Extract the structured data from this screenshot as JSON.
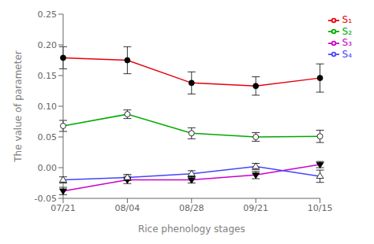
{
  "chart_data": {
    "type": "line",
    "xlabel": "Rice phenology stages",
    "ylabel": "The value of parameter",
    "categories": [
      "07/21",
      "08/04",
      "08/28",
      "09/21",
      "10/15"
    ],
    "series": [
      {
        "name": "S₁",
        "color": "#e8000a",
        "marker": "circle-filled",
        "values": [
          0.179,
          0.175,
          0.138,
          0.133,
          0.146
        ],
        "yerr": [
          0.018,
          0.022,
          0.018,
          0.015,
          0.023
        ]
      },
      {
        "name": "S₂",
        "color": "#00aa00",
        "marker": "circle-open",
        "values": [
          0.068,
          0.087,
          0.056,
          0.05,
          0.051
        ],
        "yerr": [
          0.009,
          0.007,
          0.009,
          0.007,
          0.01
        ]
      },
      {
        "name": "S₃",
        "color": "#cc00cc",
        "marker": "triangle-down-filled",
        "values": [
          -0.038,
          -0.02,
          -0.02,
          -0.012,
          0.005
        ],
        "yerr": [
          0.006,
          0.006,
          0.005,
          0.006,
          0.005
        ]
      },
      {
        "name": "S₄",
        "color": "#4444ff",
        "marker": "triangle-up-open",
        "values": [
          -0.02,
          -0.016,
          -0.01,
          0.002,
          -0.014
        ],
        "yerr": [
          0.005,
          0.005,
          0.005,
          0.005,
          0.01
        ]
      }
    ],
    "ylim": [
      -0.05,
      0.25
    ],
    "yticks": [
      -0.05,
      {
        "value": 0.0,
        "label": "0.00"
      },
      0.05,
      {
        "value": 0.1,
        "label": "0.10"
      },
      0.15,
      {
        "value": 0.2,
        "label": "0.20"
      },
      0.25
    ],
    "grid": false,
    "legend": "upper right"
  }
}
